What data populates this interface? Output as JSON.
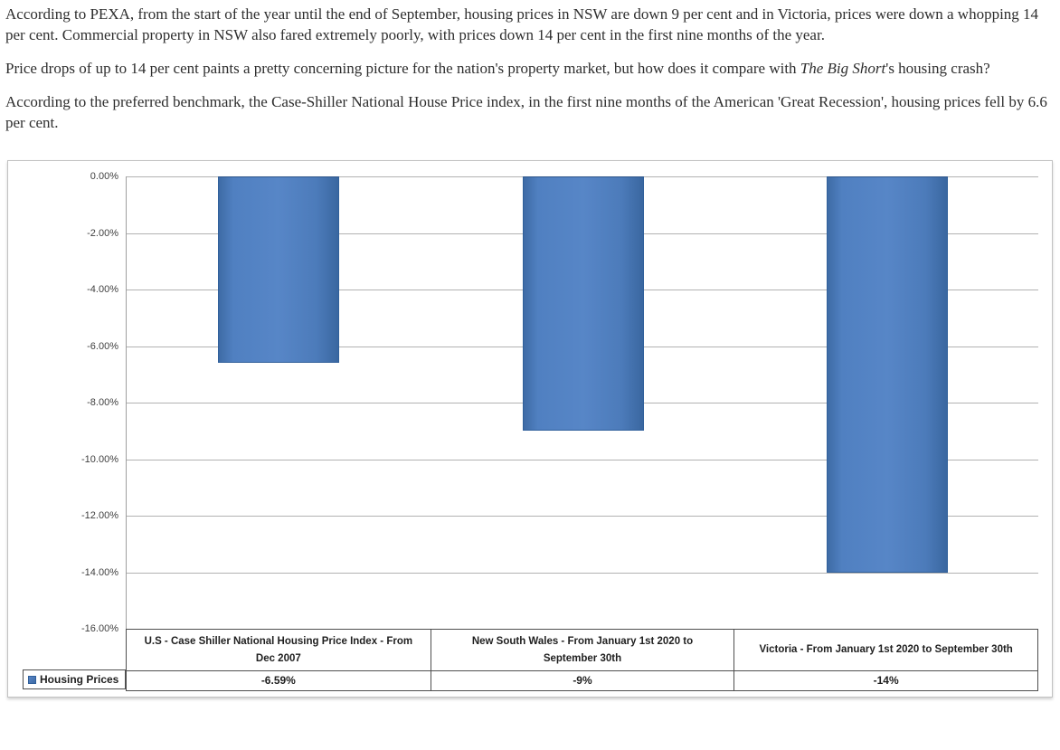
{
  "article": {
    "p1": "According to PEXA, from the start of the year until the end of September, housing prices in NSW are down 9 per cent and in Victoria, prices were down a whopping 14 per cent. Commercial property in NSW also fared extremely poorly, with prices down 14 per cent in the first nine months of the year.",
    "p2_before": "Price drops of up to 14 per cent paints a pretty concerning picture for the nation's property market, but how does it compare with ",
    "p2_italic": "The Big Short",
    "p2_after": "'s housing crash?",
    "p3": "According to the preferred benchmark, the Case-Shiller National House Price index, in the first nine months of the American 'Great Recession', housing prices fell by 6.6 per cent."
  },
  "chart_data": {
    "type": "bar",
    "title": "",
    "categories": [
      "U.S - Case Shiller National Housing Price Index - From Dec 2007",
      "New South Wales - From January 1st 2020 to September 30th",
      "Victoria - From January 1st 2020 to September 30th"
    ],
    "series": [
      {
        "name": "Housing Prices",
        "values": [
          -6.59,
          -9,
          -14
        ]
      }
    ],
    "value_labels": [
      "-6.59%",
      "-9%",
      "-14%"
    ],
    "y_ticks": [
      "0.00%",
      "-2.00%",
      "-4.00%",
      "-6.00%",
      "-8.00%",
      "-10.00%",
      "-12.00%",
      "-14.00%",
      "-16.00%"
    ],
    "ylim": [
      -16,
      0
    ],
    "grid": true,
    "legend_label": "Housing Prices",
    "legend_position": "bottom-left",
    "bar_color": "#4d7ebf",
    "gridline_color": "#b2b2b2"
  }
}
